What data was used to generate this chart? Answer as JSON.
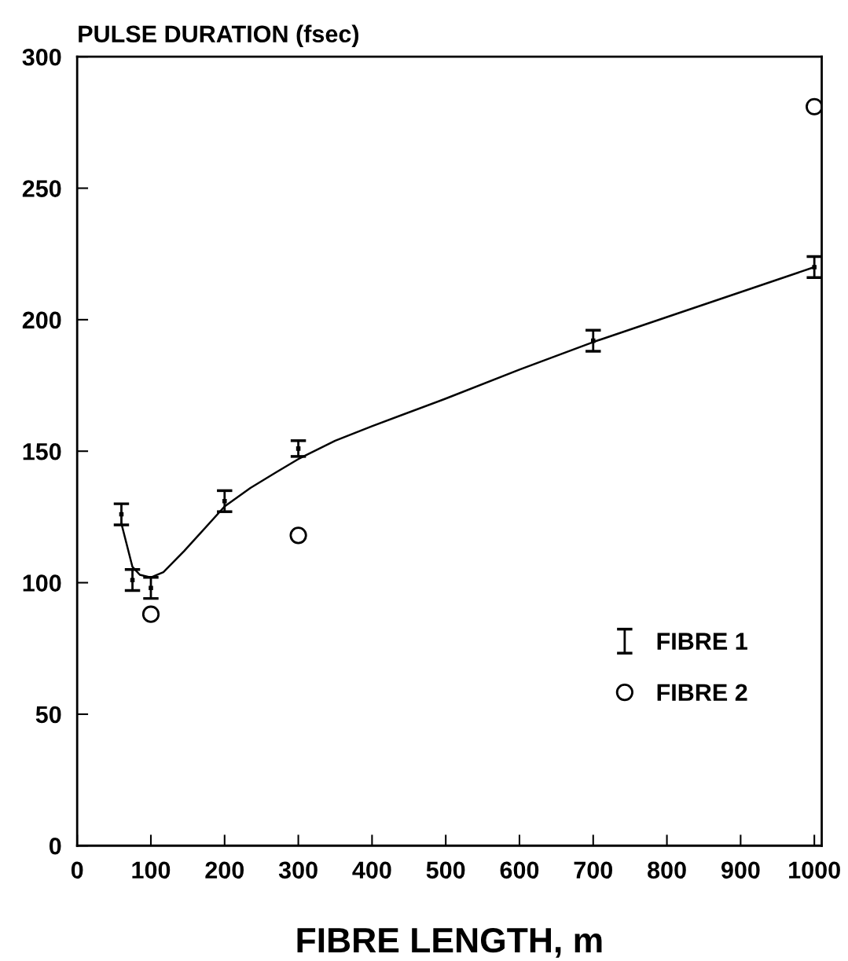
{
  "chart_data": {
    "type": "scatter",
    "ylabel": "PULSE DURATION (fsec)",
    "xlabel": "FIBRE LENGTH, m",
    "xlim": [
      0,
      1010
    ],
    "xticks": [
      0,
      100,
      200,
      300,
      400,
      500,
      600,
      700,
      800,
      900,
      1000
    ],
    "ylim": [
      0,
      300
    ],
    "yticks": [
      0,
      50,
      100,
      150,
      200,
      250,
      300
    ],
    "grid": false,
    "legend": "bottom right",
    "series": [
      {
        "name": "FIBRE 1",
        "marker": "square",
        "color": "#000000",
        "x": [
          60,
          75,
          100,
          200,
          300,
          700,
          1000
        ],
        "values": [
          126,
          101,
          98,
          131,
          151,
          192,
          220
        ],
        "errors": [
          4,
          4,
          4,
          4,
          3,
          4,
          4
        ]
      },
      {
        "name": "FIBRE 2",
        "marker": "circle",
        "color": "#000000",
        "x": [
          100,
          300,
          1000
        ],
        "values": [
          88,
          118,
          281
        ]
      },
      {
        "type": "line",
        "marker": "none",
        "line_style": "solid",
        "color": "#000000",
        "x": [
          60,
          75,
          85,
          100,
          117,
          145,
          200,
          235,
          270,
          300,
          350,
          400,
          500,
          600,
          700,
          800,
          900,
          1000
        ],
        "values": [
          122.5,
          106,
          103,
          102,
          104,
          112,
          129,
          136,
          142,
          147,
          154,
          159.5,
          170,
          181,
          191.5,
          201,
          210.5,
          220
        ]
      }
    ]
  }
}
